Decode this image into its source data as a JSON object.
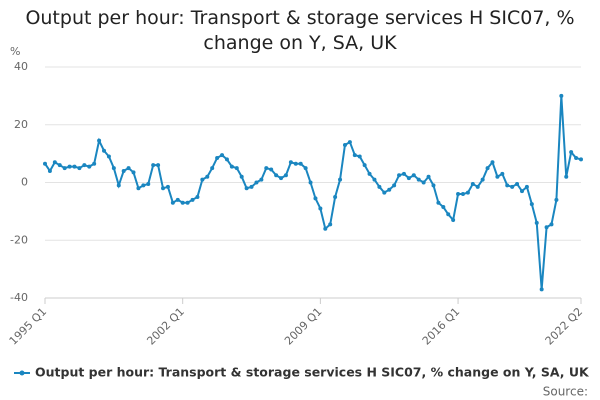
{
  "chart_data": {
    "type": "line",
    "title": "Output per hour: Transport & storage services H SIC07, % change on Y, SA, UK",
    "y_label": "%",
    "source": "Source:",
    "categories": [
      "1995 Q1",
      null,
      null,
      null,
      null,
      null,
      null,
      null,
      null,
      null,
      null,
      null,
      null,
      null,
      null,
      null,
      null,
      null,
      null,
      null,
      null,
      null,
      null,
      null,
      null,
      null,
      null,
      null,
      "2002 Q1",
      null,
      null,
      null,
      null,
      null,
      null,
      null,
      null,
      null,
      null,
      null,
      null,
      null,
      null,
      null,
      null,
      null,
      null,
      null,
      null,
      null,
      null,
      null,
      null,
      null,
      null,
      null,
      "2009 Q1",
      null,
      null,
      null,
      null,
      null,
      null,
      null,
      null,
      null,
      null,
      null,
      null,
      null,
      null,
      null,
      null,
      null,
      null,
      null,
      null,
      null,
      null,
      null,
      null,
      null,
      null,
      null,
      "2016 Q1",
      null,
      null,
      null,
      null,
      null,
      null,
      null,
      null,
      null,
      null,
      null,
      null,
      null,
      null,
      null,
      null,
      null,
      null,
      null,
      null,
      null,
      null,
      null,
      null,
      "2022 Q2"
    ],
    "series": [
      {
        "name": "Output per hour: Transport & storage services H SIC07, % change on Y, SA, UK",
        "color": "#1a86c0",
        "values": [
          6.5,
          4,
          7,
          6,
          5,
          5.5,
          5.5,
          5,
          6,
          5.5,
          6.5,
          14.5,
          11,
          9,
          5,
          -1,
          4,
          5,
          3.5,
          -2,
          -1,
          -0.5,
          6,
          6,
          -2,
          -1.5,
          -7,
          -6,
          -7,
          -7,
          -6,
          -5,
          1,
          2,
          5,
          8.5,
          9.5,
          8,
          5.5,
          5,
          2,
          -2,
          -1.5,
          0,
          1,
          5,
          4.5,
          2.5,
          1.5,
          2.5,
          7,
          6.5,
          6.5,
          5,
          0,
          -5.5,
          -9,
          -16,
          -14.5,
          -5,
          1,
          13,
          14,
          9.5,
          9,
          6,
          3,
          1,
          -1.5,
          -3.5,
          -2.5,
          -1,
          2.5,
          3,
          1.5,
          2.5,
          1,
          0,
          2,
          -1,
          -7,
          -8.5,
          -11,
          -13,
          -4,
          -4,
          -3.5,
          -0.5,
          -1.5,
          1,
          5,
          7,
          2,
          3,
          -1,
          -1.5,
          -0.5,
          -3,
          -1.5,
          -7.5,
          -14,
          -37,
          -15.5,
          -14.5,
          -6,
          30,
          2,
          10.5,
          8.5,
          8
        ]
      }
    ],
    "ylim": [
      -40,
      40
    ],
    "yticks": [
      -40,
      -20,
      0,
      20,
      40
    ],
    "grid": true
  }
}
